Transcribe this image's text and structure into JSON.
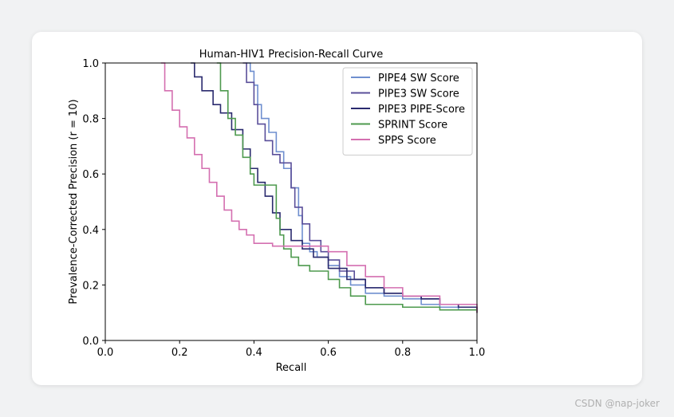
{
  "watermark": "CSDN @nap-joker",
  "chart_data": {
    "type": "line",
    "title": "Human-HIV1 Precision-Recall Curve",
    "xlabel": "Recall",
    "ylabel": "Prevalence-Corrected Precision (r = 10)",
    "xlim": [
      0.0,
      1.0
    ],
    "ylim": [
      0.0,
      1.0
    ],
    "xticks": [
      "0.0",
      "0.2",
      "0.4",
      "0.6",
      "0.8",
      "1.0"
    ],
    "yticks": [
      "0.0",
      "0.2",
      "0.4",
      "0.6",
      "0.8",
      "1.0"
    ],
    "grid": false,
    "legend": "top-right",
    "step": true,
    "series": [
      {
        "name": "PIPE4 SW Score",
        "color": "#6f8fcf",
        "x": [
          0.38,
          0.39,
          0.4,
          0.41,
          0.42,
          0.44,
          0.46,
          0.48,
          0.5,
          0.52,
          0.53,
          0.55,
          0.57,
          0.6,
          0.63,
          0.66,
          0.7,
          0.75,
          0.8,
          0.85,
          0.9,
          0.95,
          1.0
        ],
        "y": [
          1.0,
          0.97,
          0.92,
          0.85,
          0.8,
          0.75,
          0.68,
          0.62,
          0.55,
          0.45,
          0.35,
          0.32,
          0.3,
          0.27,
          0.23,
          0.2,
          0.17,
          0.16,
          0.15,
          0.13,
          0.12,
          0.11,
          0.1
        ]
      },
      {
        "name": "PIPE3 SW Score",
        "color": "#5a4f9a",
        "x": [
          0.37,
          0.38,
          0.4,
          0.41,
          0.43,
          0.45,
          0.47,
          0.5,
          0.51,
          0.53,
          0.55,
          0.58,
          0.6,
          0.63,
          0.67,
          0.7,
          0.75,
          0.8,
          0.85,
          0.9,
          0.95,
          1.0
        ],
        "y": [
          1.0,
          0.93,
          0.85,
          0.78,
          0.72,
          0.67,
          0.64,
          0.55,
          0.48,
          0.42,
          0.36,
          0.32,
          0.29,
          0.25,
          0.22,
          0.19,
          0.17,
          0.16,
          0.15,
          0.13,
          0.12,
          0.1
        ]
      },
      {
        "name": "PIPE3 PIPE-Score",
        "color": "#2a2a6e",
        "x": [
          0.23,
          0.24,
          0.26,
          0.29,
          0.31,
          0.34,
          0.37,
          0.39,
          0.41,
          0.43,
          0.45,
          0.47,
          0.5,
          0.53,
          0.56,
          0.6,
          0.65,
          0.7,
          0.75,
          0.8,
          0.85,
          0.9,
          0.95,
          1.0
        ],
        "y": [
          1.0,
          0.95,
          0.9,
          0.85,
          0.82,
          0.76,
          0.69,
          0.62,
          0.57,
          0.52,
          0.46,
          0.4,
          0.36,
          0.33,
          0.3,
          0.26,
          0.22,
          0.19,
          0.17,
          0.16,
          0.15,
          0.13,
          0.12,
          0.1
        ]
      },
      {
        "name": "SPRINT Score",
        "color": "#4e9a4e",
        "x": [
          0.3,
          0.31,
          0.33,
          0.35,
          0.37,
          0.39,
          0.4,
          0.42,
          0.46,
          0.47,
          0.48,
          0.5,
          0.52,
          0.55,
          0.6,
          0.63,
          0.66,
          0.7,
          0.8,
          0.9,
          1.0
        ],
        "y": [
          1.0,
          0.9,
          0.8,
          0.74,
          0.66,
          0.6,
          0.56,
          0.56,
          0.44,
          0.38,
          0.33,
          0.3,
          0.27,
          0.25,
          0.22,
          0.19,
          0.16,
          0.13,
          0.12,
          0.11,
          0.1
        ]
      },
      {
        "name": "SPPS Score",
        "color": "#d46fb0",
        "x": [
          0.15,
          0.16,
          0.18,
          0.2,
          0.22,
          0.24,
          0.26,
          0.28,
          0.3,
          0.32,
          0.34,
          0.36,
          0.38,
          0.4,
          0.45,
          0.5,
          0.55,
          0.6,
          0.65,
          0.7,
          0.75,
          0.8,
          0.9,
          1.0
        ],
        "y": [
          1.0,
          0.9,
          0.83,
          0.77,
          0.73,
          0.67,
          0.62,
          0.57,
          0.52,
          0.47,
          0.43,
          0.4,
          0.38,
          0.35,
          0.34,
          0.34,
          0.34,
          0.32,
          0.27,
          0.23,
          0.19,
          0.16,
          0.13,
          0.1
        ]
      }
    ]
  }
}
